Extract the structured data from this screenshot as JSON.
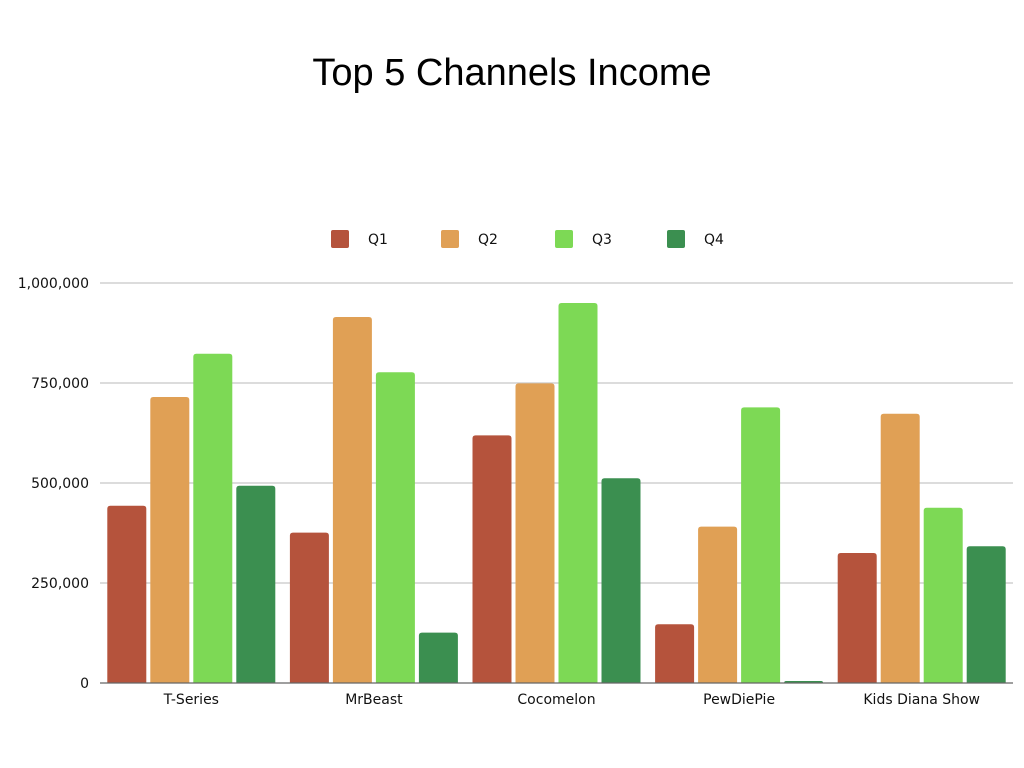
{
  "chart_data": {
    "type": "bar",
    "title": "Top 5 Channels Income",
    "categories": [
      "T-Series",
      "MrBeast",
      "Cocomelon",
      "PewDiePie",
      "Kids Diana Show"
    ],
    "series": [
      {
        "name": "Q1",
        "color": "#b5533c",
        "values": [
          443000,
          376000,
          619000,
          147000,
          325000
        ]
      },
      {
        "name": "Q2",
        "color": "#e0a055",
        "values": [
          715000,
          915000,
          749000,
          391000,
          673000
        ]
      },
      {
        "name": "Q3",
        "color": "#7dd955",
        "values": [
          823000,
          777000,
          950000,
          689000,
          438000
        ]
      },
      {
        "name": "Q4",
        "color": "#3b8f50",
        "values": [
          493000,
          126000,
          512000,
          5000,
          342000
        ]
      }
    ],
    "yticks": [
      {
        "value": 0,
        "label": "0"
      },
      {
        "value": 250000,
        "label": "250,000"
      },
      {
        "value": 500000,
        "label": "500,000"
      },
      {
        "value": 750000,
        "label": "750,000"
      },
      {
        "value": 1000000,
        "label": "1,000,000"
      }
    ],
    "ylim": [
      0,
      1000000
    ],
    "grid": true,
    "legend_position": "top-center"
  }
}
